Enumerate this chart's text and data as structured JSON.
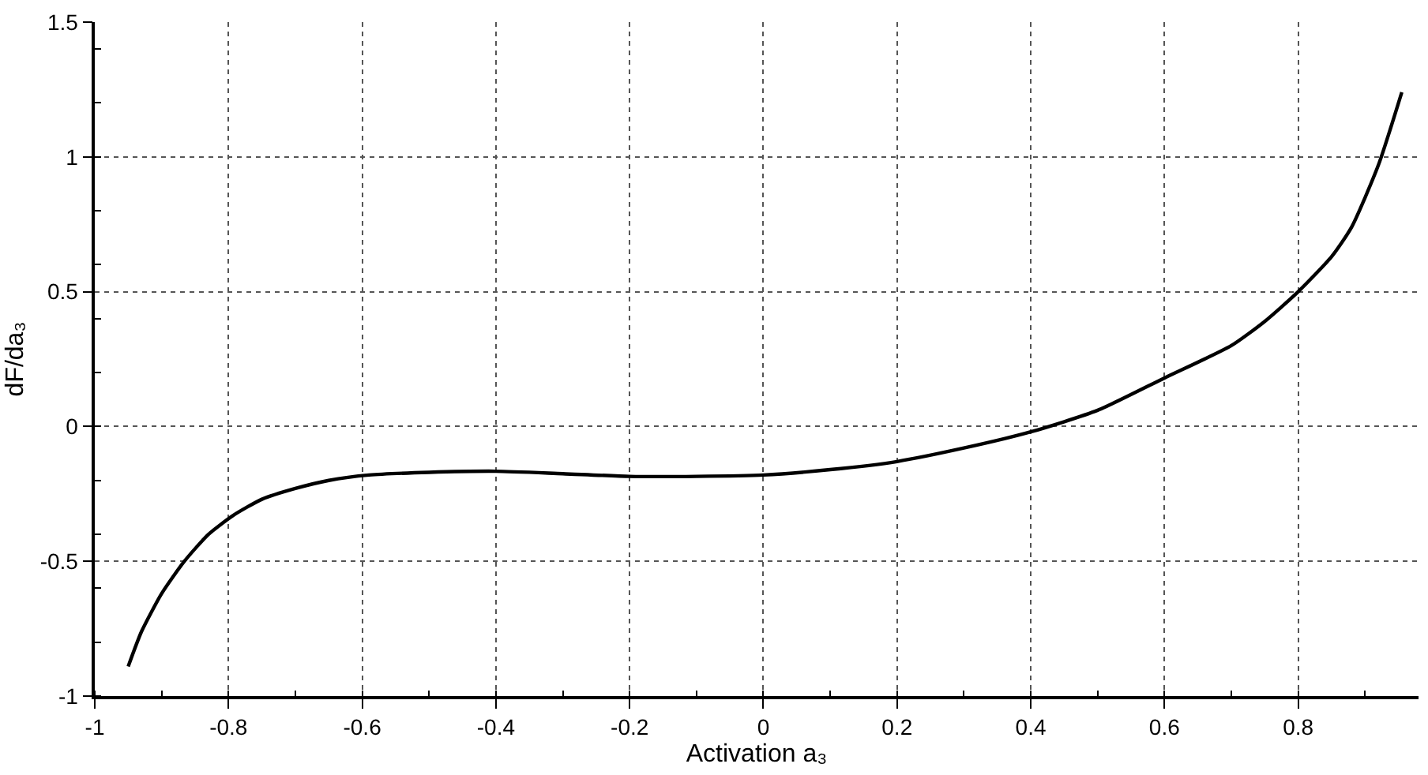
{
  "chart_data": {
    "type": "line",
    "xlabel": "Activation a₃",
    "ylabel": "dF/da₃",
    "x": [
      -0.95,
      -0.93,
      -0.9,
      -0.866,
      -0.83,
      -0.793,
      -0.75,
      -0.7,
      -0.65,
      -0.59,
      -0.5,
      -0.4,
      -0.3,
      -0.2,
      -0.1,
      0,
      0.1,
      0.2,
      0.3,
      0.4,
      0.5,
      0.6,
      0.7,
      0.75,
      0.8,
      0.85,
      0.88,
      0.92,
      0.955
    ],
    "series": [
      {
        "color": "#000000",
        "values": [
          -0.89,
          -0.76,
          -0.62,
          -0.5,
          -0.4,
          -0.33,
          -0.27,
          -0.23,
          -0.2,
          -0.18,
          -0.17,
          -0.166,
          -0.175,
          -0.185,
          -0.185,
          -0.18,
          -0.16,
          -0.13,
          -0.08,
          -0.02,
          0.06,
          0.18,
          0.3,
          0.39,
          0.5,
          0.63,
          0.74,
          0.97,
          1.24
        ]
      }
    ],
    "xlim": [
      -1,
      0.98
    ],
    "xticks": [
      -1,
      -0.8,
      -0.6,
      -0.4,
      -0.2,
      0,
      0.2,
      0.4,
      0.6,
      0.8
    ],
    "ylim": [
      -1,
      1.5
    ],
    "yticks": [
      -1,
      -0.5,
      0,
      0.5,
      1,
      1.5
    ],
    "grid": true,
    "line_style": "solid",
    "marker": "none",
    "legend": false
  }
}
